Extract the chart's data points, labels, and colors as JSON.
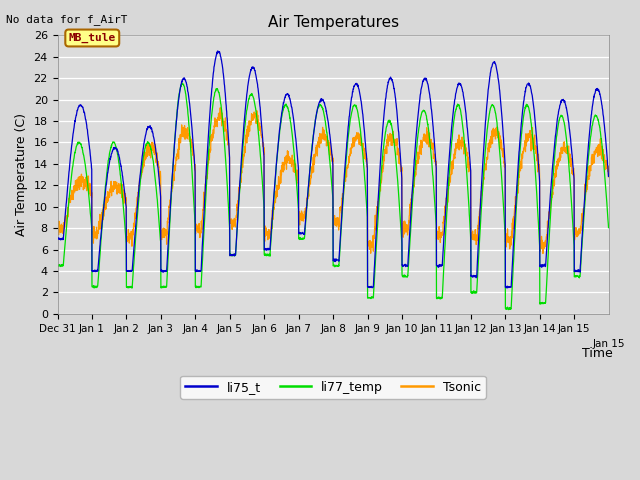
{
  "title": "Air Temperatures",
  "top_left_text": "No data for f_AirT",
  "annotation_text": "MB_tule",
  "xlabel": "Time",
  "ylabel": "Air Temperature (C)",
  "ylim": [
    0,
    26
  ],
  "yticks": [
    0,
    2,
    4,
    6,
    8,
    10,
    12,
    14,
    16,
    18,
    20,
    22,
    24,
    26
  ],
  "line_colors": {
    "li75_t": "#0000CC",
    "li77_temp": "#00DD00",
    "Tsonic": "#FF9900"
  },
  "day_labels": [
    "Dec 31",
    "Jan 1",
    "Jan 2",
    "Jan 3",
    "Jan 4",
    "Jan 5",
    "Jan 6",
    "Jan 7",
    "Jan 8",
    "Jan 9",
    "Jan 10",
    "Jan 11",
    "Jan 12",
    "Jan 13",
    "Jan 14",
    "Jan 15"
  ],
  "daily_min_blue": [
    7.0,
    4.0,
    4.0,
    4.0,
    4.0,
    5.5,
    6.0,
    7.5,
    5.0,
    2.5,
    4.5,
    4.5,
    3.5,
    2.5,
    4.5,
    4.0
  ],
  "daily_max_blue": [
    19.5,
    15.5,
    17.5,
    22.0,
    24.5,
    23.0,
    20.5,
    20.0,
    21.5,
    22.0,
    22.0,
    21.5,
    23.5,
    21.5,
    20.0,
    21.0
  ],
  "daily_min_green": [
    4.5,
    2.5,
    2.5,
    2.5,
    2.5,
    5.5,
    5.5,
    7.0,
    4.5,
    1.5,
    3.5,
    1.5,
    2.0,
    0.5,
    1.0,
    3.5
  ],
  "daily_max_green": [
    16.0,
    16.0,
    16.0,
    21.5,
    21.0,
    20.5,
    19.5,
    19.5,
    19.5,
    18.0,
    19.0,
    19.5,
    19.5,
    19.5,
    18.5,
    18.5
  ],
  "daily_min_orange": [
    8.0,
    7.5,
    7.0,
    7.5,
    8.0,
    8.5,
    7.5,
    9.0,
    8.5,
    6.5,
    8.0,
    7.5,
    7.0,
    7.0,
    6.5,
    7.5
  ],
  "daily_max_orange": [
    12.5,
    12.0,
    15.5,
    17.0,
    18.5,
    18.5,
    14.5,
    16.5,
    16.5,
    16.5,
    16.5,
    16.0,
    17.0,
    16.5,
    15.5,
    15.5
  ],
  "n_days": 16,
  "points_per_day": 144,
  "fig_bg": "#D8D8D8",
  "plot_bg": "#DCDCDC"
}
